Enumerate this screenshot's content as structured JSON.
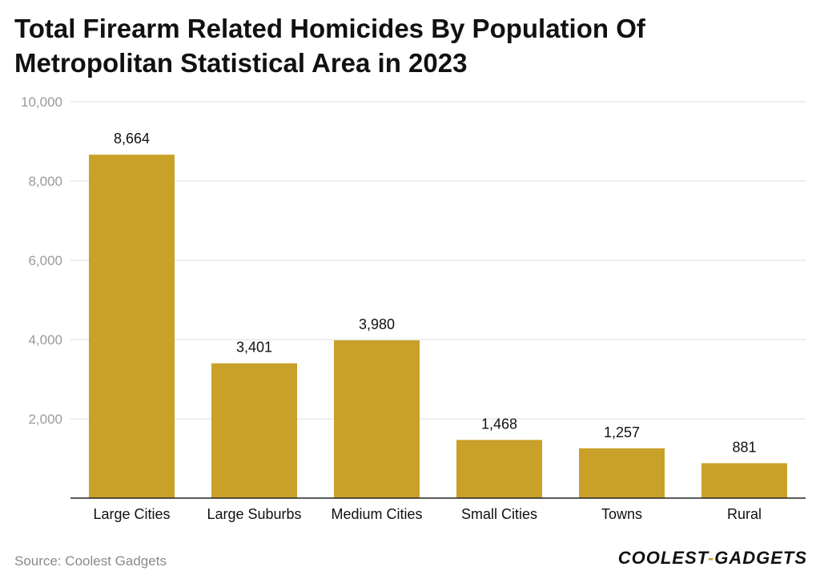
{
  "chart_data": {
    "type": "bar",
    "title": "Total Firearm Related Homicides By Population Of Metropolitan Statistical Area in 2023",
    "categories": [
      "Large Cities",
      "Large Suburbs",
      "Medium Cities",
      "Small Cities",
      "Towns",
      "Rural"
    ],
    "values": [
      8664,
      3401,
      3980,
      1468,
      1257,
      881
    ],
    "value_labels": [
      "8,664",
      "3,401",
      "3,980",
      "1,468",
      "1,257",
      "881"
    ],
    "y_ticks": [
      2000,
      4000,
      6000,
      8000,
      10000
    ],
    "y_tick_labels": [
      "2,000",
      "4,000",
      "6,000",
      "8,000",
      "10,000"
    ],
    "ylim": [
      0,
      10000
    ],
    "xlabel": "",
    "ylabel": "",
    "grid": true,
    "bar_color": "#c9a028"
  },
  "footer": {
    "source": "Source: Coolest Gadgets",
    "brand_part1": "COOLEST",
    "brand_dash": "-",
    "brand_part2": "GADGETS"
  }
}
